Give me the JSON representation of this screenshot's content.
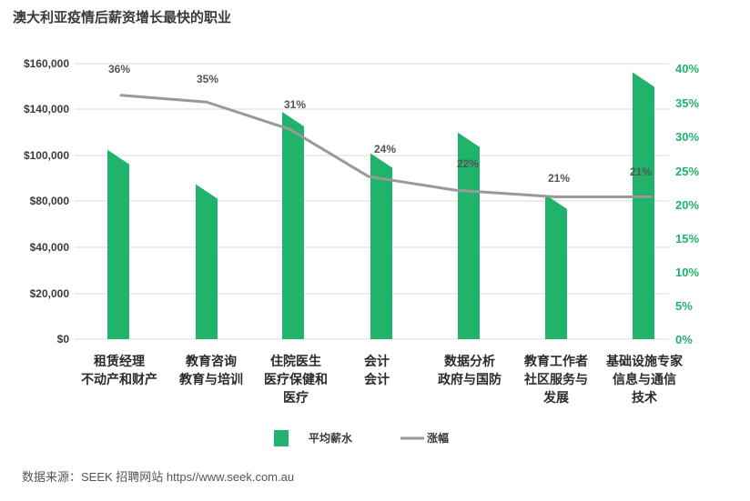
{
  "title": "澳大利亚疫情后薪资增长最快的职业",
  "source": "数据来源：SEEK 招聘网站 https//www.seek.com.au",
  "colors": {
    "bar": "#1fb36b",
    "line": "#999999",
    "right_axis": "#1fb36b",
    "grid": "#d9d9d9"
  },
  "chart_data": {
    "type": "bar",
    "title": "澳大利亚疫情后薪资增长最快的职业",
    "categories": [
      [
        "租赁经理",
        "不动产和财产"
      ],
      [
        "教育咨询",
        "教育与培训"
      ],
      [
        "住院医生",
        "医疗保健和",
        "医疗"
      ],
      [
        "会计",
        "会计"
      ],
      [
        "数据分析",
        "政府与国防"
      ],
      [
        "教育工作者",
        "社区服务与",
        "发展"
      ],
      [
        "基础设施专家",
        "信息与通信",
        "技术"
      ]
    ],
    "left_axis": {
      "ticks": [
        "$160,000",
        "$140,000",
        "$100,000",
        "$80,000",
        "$40,000",
        "$20,000",
        "$0"
      ],
      "tick_values": [
        160000,
        140000,
        100000,
        80000,
        40000,
        20000,
        0
      ]
    },
    "right_axis": {
      "ticks": [
        "40%",
        "35%",
        "30%",
        "25%",
        "20%",
        "15%",
        "10%",
        "5%",
        "0%"
      ],
      "tick_values": [
        40,
        35,
        30,
        25,
        20,
        15,
        10,
        5,
        0
      ],
      "ylim": [
        0,
        40
      ]
    },
    "series": [
      {
        "name": "平均薪水",
        "type": "bar",
        "axis": "left",
        "values": [
          110000,
          90000,
          132000,
          108000,
          120000,
          84000,
          155000
        ]
      },
      {
        "name": "涨幅",
        "type": "line",
        "axis": "right",
        "values": [
          36,
          35,
          31,
          24,
          22,
          21,
          21
        ],
        "labels": [
          "36%",
          "35%",
          "31%",
          "24%",
          "22%",
          "21%",
          "21%"
        ]
      }
    ],
    "legend": [
      "平均薪水",
      "涨幅"
    ],
    "legend_position": "bottom-center"
  }
}
